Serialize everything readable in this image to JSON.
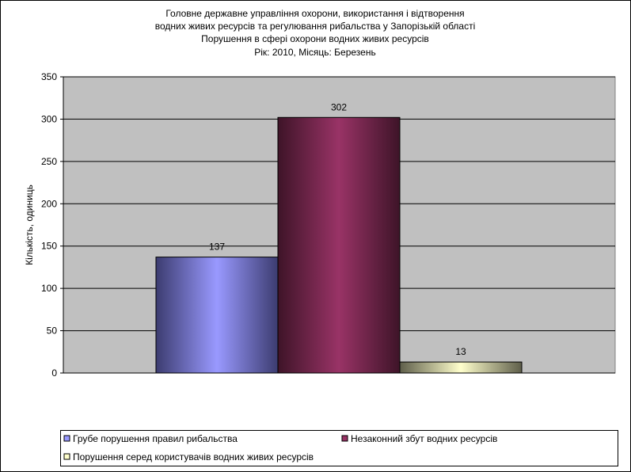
{
  "chart_data": {
    "type": "bar",
    "title_lines": [
      "Головне державне управління охорони, використання і відтворення",
      "водних живих ресурсів та регулювання рибальства у Запорізькій області",
      "Порушення в сфері охорони водних живих ресурсів",
      "Рік: 2010, Місяць: Березень"
    ],
    "xlabel": "",
    "ylabel": "Кількість, одиниць",
    "ylim": [
      0,
      350
    ],
    "yticks": [
      0,
      50,
      100,
      150,
      200,
      250,
      300,
      350
    ],
    "grid": true,
    "legend_position": "bottom",
    "series": [
      {
        "name": "Грубе порушення правил рибальства",
        "value": 137,
        "color": "#9999ff",
        "dark": "#3c3c70"
      },
      {
        "name": "Незаконний збут водних ресурсів",
        "value": 302,
        "color": "#993366",
        "dark": "#3e1428"
      },
      {
        "name": "Порушення серед користувачів водних живих ресурсів",
        "value": 13,
        "color": "#ffffcc",
        "dark": "#5e5e4a"
      }
    ]
  }
}
